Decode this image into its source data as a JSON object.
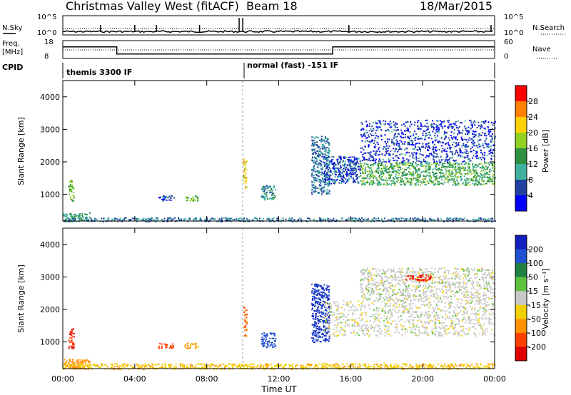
{
  "header": {
    "station": "Christmas Valley West (fitACF)",
    "beam": "Beam 18",
    "date": "18/Mar/2015"
  },
  "aux_panels": {
    "nsky_label": "N.Sky",
    "nsearch_label": "N.Search",
    "freq_label_line1": "Freq.",
    "freq_label_line2": "[MHz]",
    "nave_label": "Nave",
    "cpid_label": "CPID",
    "noise_ticks": [
      "10^5",
      "10^0"
    ],
    "freq_ticks": [
      "18",
      "8"
    ],
    "nave_ticks": [
      "60",
      "0"
    ],
    "cpid_segments": [
      {
        "start_hour": 0.0,
        "label": "themis 3300 IF"
      },
      {
        "start_hour": 10.0,
        "label": "normal (fast) -151 IF"
      }
    ],
    "freq_steps": [
      {
        "x0": 0.0,
        "x1": 3.0,
        "freq_mhz": 14.5
      },
      {
        "x0": 3.0,
        "x1": 15.0,
        "freq_mhz": 10.5
      },
      {
        "x0": 15.0,
        "x1": 24.0,
        "freq_mhz": 14.5
      }
    ]
  },
  "axes": {
    "xlabel": "Time UT",
    "ylabel": "Slant Range [km]",
    "x_ticks": [
      "00:00",
      "04:00",
      "08:00",
      "12:00",
      "16:00",
      "20:00",
      "00:00"
    ],
    "y_ticks": [
      "1000",
      "2000",
      "3000",
      "4000"
    ],
    "xlim": [
      0,
      24
    ],
    "ylim": [
      180,
      4500
    ]
  },
  "colorbars": {
    "power": {
      "label": "Power [dB]",
      "ticks": [
        "28",
        "24",
        "20",
        "16",
        "12",
        "8",
        "4"
      ],
      "colors": [
        "#ff0000",
        "#ff8000",
        "#ffd000",
        "#90d020",
        "#2e9040",
        "#40b0a0",
        "#2040a0",
        "#0000ff"
      ]
    },
    "velocity": {
      "label": "Velocity [m s⁻¹]",
      "ticks": [
        "200",
        "100",
        "50",
        "15",
        "-15",
        "-50",
        "-100",
        "-200"
      ],
      "colors": [
        "#1020c0",
        "#2050d0",
        "#208040",
        "#60c040",
        "#c8c8c8",
        "#f0d000",
        "#ff9000",
        "#ff4000",
        "#e00000"
      ]
    }
  },
  "chart_data": [
    {
      "type": "heatmap",
      "name": "power",
      "xlabel": "Time UT",
      "ylabel": "Slant Range [km]",
      "xlim": [
        0,
        24
      ],
      "ylim": [
        180,
        4500
      ],
      "regions": [
        {
          "t0": 0.0,
          "t1": 1.5,
          "r0": 180,
          "r1": 450,
          "value": 12
        },
        {
          "t0": 0.3,
          "t1": 0.6,
          "r0": 800,
          "r1": 1450,
          "value": 16
        },
        {
          "t0": 5.3,
          "t1": 6.2,
          "r0": 820,
          "r1": 980,
          "value": 6
        },
        {
          "t0": 6.7,
          "t1": 7.5,
          "r0": 820,
          "r1": 980,
          "value": 16
        },
        {
          "t0": 10.0,
          "t1": 10.2,
          "r0": 1200,
          "r1": 2100,
          "value": 22
        },
        {
          "t0": 11.0,
          "t1": 11.8,
          "r0": 850,
          "r1": 1300,
          "value": 10
        },
        {
          "t0": 13.8,
          "t1": 14.8,
          "r0": 1000,
          "r1": 2800,
          "value": 8
        },
        {
          "t0": 14.5,
          "t1": 16.5,
          "r0": 1350,
          "r1": 2200,
          "value": 6
        },
        {
          "t0": 16.5,
          "t1": 24.0,
          "r0": 1300,
          "r1": 2000,
          "value": 14
        },
        {
          "t0": 16.5,
          "t1": 24.0,
          "r0": 2000,
          "r1": 3300,
          "value": 5
        },
        {
          "t0": 0.0,
          "t1": 24.0,
          "r0": 180,
          "r1": 300,
          "value": 8
        }
      ]
    },
    {
      "type": "heatmap",
      "name": "velocity",
      "xlabel": "Time UT",
      "ylabel": "Slant Range [km]",
      "xlim": [
        0,
        24
      ],
      "ylim": [
        180,
        4500
      ],
      "regions": [
        {
          "t0": 0.0,
          "t1": 1.5,
          "r0": 180,
          "r1": 500,
          "value": -80
        },
        {
          "t0": 0.3,
          "t1": 0.6,
          "r0": 800,
          "r1": 1450,
          "value": -200
        },
        {
          "t0": 5.3,
          "t1": 6.2,
          "r0": 820,
          "r1": 980,
          "value": -120
        },
        {
          "t0": 6.7,
          "t1": 7.5,
          "r0": 820,
          "r1": 980,
          "value": -60
        },
        {
          "t0": 10.0,
          "t1": 10.2,
          "r0": 1200,
          "r1": 2100,
          "value": -100
        },
        {
          "t0": 11.0,
          "t1": 11.8,
          "r0": 850,
          "r1": 1300,
          "value": 150
        },
        {
          "t0": 13.8,
          "t1": 14.8,
          "r0": 1000,
          "r1": 2800,
          "value": 200
        },
        {
          "t0": 14.5,
          "t1": 24.0,
          "r0": 1200,
          "r1": 2300,
          "value": 0
        },
        {
          "t0": 16.5,
          "t1": 24.0,
          "r0": 2300,
          "r1": 3300,
          "value": 0
        },
        {
          "t0": 19.0,
          "t1": 20.5,
          "r0": 2900,
          "r1": 3100,
          "value": -200
        },
        {
          "t0": 0.0,
          "t1": 24.0,
          "r0": 180,
          "r1": 350,
          "value": -40
        }
      ]
    }
  ]
}
